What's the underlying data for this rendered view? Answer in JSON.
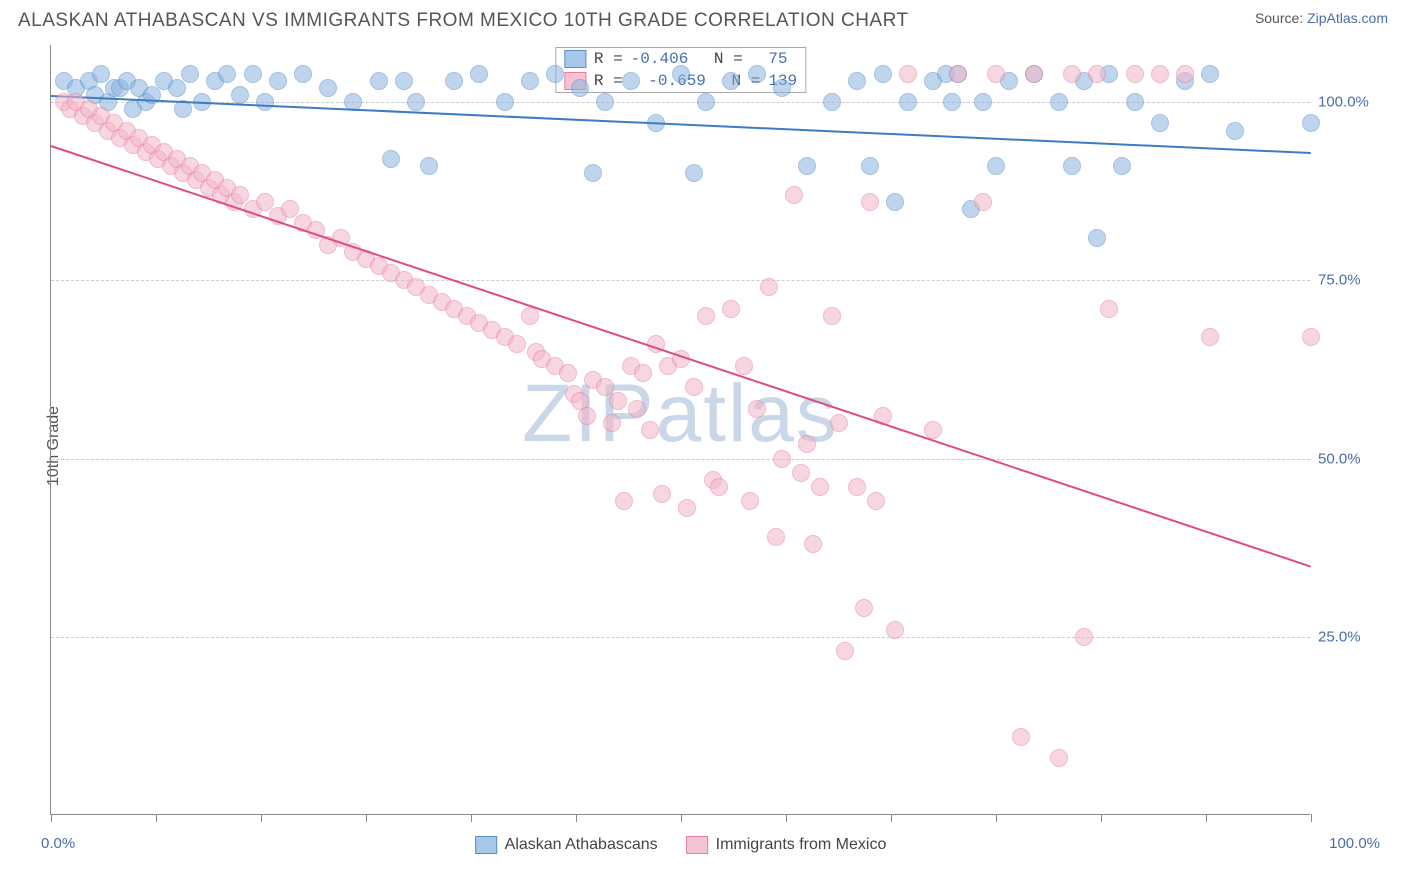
{
  "title": "ALASKAN ATHABASCAN VS IMMIGRANTS FROM MEXICO 10TH GRADE CORRELATION CHART",
  "source_label": "Source: ",
  "source_name": "ZipAtlas.com",
  "ylabel": "10th Grade",
  "watermark_a": "ZIP",
  "watermark_b": "atlas",
  "chart": {
    "type": "scatter",
    "xlim": [
      0,
      100
    ],
    "ylim": [
      0,
      108
    ],
    "y_gridlines": [
      25,
      50,
      75,
      100
    ],
    "y_tick_labels": [
      "25.0%",
      "50.0%",
      "75.0%",
      "100.0%"
    ],
    "x_tick_positions": [
      0,
      8.3,
      16.7,
      25,
      33.3,
      41.7,
      50,
      58.3,
      66.7,
      75,
      83.3,
      91.7,
      100
    ],
    "x_axis_min_label": "0.0%",
    "x_axis_max_label": "100.0%",
    "background_color": "#ffffff",
    "grid_color": "#cccccc",
    "axis_color": "#888888",
    "marker_radius": 9,
    "marker_opacity": 0.55,
    "series": [
      {
        "name": "Alaskan Athabascans",
        "color_fill": "#8bb4e0",
        "color_stroke": "#5a8fc9",
        "line_color": "#3b7cc4",
        "R": "-0.406",
        "N": "75",
        "trend": {
          "x1": 0,
          "y1": 101,
          "x2": 100,
          "y2": 93
        },
        "points": [
          [
            1,
            103
          ],
          [
            2,
            102
          ],
          [
            3,
            103
          ],
          [
            3.5,
            101
          ],
          [
            4,
            104
          ],
          [
            4.5,
            100
          ],
          [
            5,
            102
          ],
          [
            5.5,
            102
          ],
          [
            6,
            103
          ],
          [
            6.5,
            99
          ],
          [
            7,
            102
          ],
          [
            7.5,
            100
          ],
          [
            8,
            101
          ],
          [
            9,
            103
          ],
          [
            10,
            102
          ],
          [
            10.5,
            99
          ],
          [
            11,
            104
          ],
          [
            12,
            100
          ],
          [
            13,
            103
          ],
          [
            14,
            104
          ],
          [
            15,
            101
          ],
          [
            16,
            104
          ],
          [
            17,
            100
          ],
          [
            18,
            103
          ],
          [
            20,
            104
          ],
          [
            22,
            102
          ],
          [
            24,
            100
          ],
          [
            26,
            103
          ],
          [
            27,
            92
          ],
          [
            28,
            103
          ],
          [
            29,
            100
          ],
          [
            30,
            91
          ],
          [
            32,
            103
          ],
          [
            34,
            104
          ],
          [
            36,
            100
          ],
          [
            38,
            103
          ],
          [
            40,
            104
          ],
          [
            42,
            102
          ],
          [
            43,
            90
          ],
          [
            44,
            100
          ],
          [
            46,
            103
          ],
          [
            48,
            97
          ],
          [
            50,
            104
          ],
          [
            51,
            90
          ],
          [
            52,
            100
          ],
          [
            54,
            103
          ],
          [
            56,
            104
          ],
          [
            58,
            102
          ],
          [
            60,
            91
          ],
          [
            62,
            100
          ],
          [
            64,
            103
          ],
          [
            65,
            91
          ],
          [
            66,
            104
          ],
          [
            67,
            86
          ],
          [
            68,
            100
          ],
          [
            70,
            103
          ],
          [
            71,
            104
          ],
          [
            71.5,
            100
          ],
          [
            72,
            104
          ],
          [
            73,
            85
          ],
          [
            74,
            100
          ],
          [
            75,
            91
          ],
          [
            76,
            103
          ],
          [
            78,
            104
          ],
          [
            80,
            100
          ],
          [
            81,
            91
          ],
          [
            82,
            103
          ],
          [
            83,
            81
          ],
          [
            84,
            104
          ],
          [
            85,
            91
          ],
          [
            86,
            100
          ],
          [
            88,
            97
          ],
          [
            90,
            103
          ],
          [
            92,
            104
          ],
          [
            94,
            96
          ],
          [
            100,
            97
          ]
        ]
      },
      {
        "name": "Immigrants from Mexico",
        "color_fill": "#f4b6c8",
        "color_stroke": "#e57fa3",
        "line_color": "#e04c7f",
        "R": "-0.659",
        "N": "139",
        "trend": {
          "x1": 0,
          "y1": 94,
          "x2": 100,
          "y2": 35
        },
        "points": [
          [
            1,
            100
          ],
          [
            1.5,
            99
          ],
          [
            2,
            100
          ],
          [
            2.5,
            98
          ],
          [
            3,
            99
          ],
          [
            3.5,
            97
          ],
          [
            4,
            98
          ],
          [
            4.5,
            96
          ],
          [
            5,
            97
          ],
          [
            5.5,
            95
          ],
          [
            6,
            96
          ],
          [
            6.5,
            94
          ],
          [
            7,
            95
          ],
          [
            7.5,
            93
          ],
          [
            8,
            94
          ],
          [
            8.5,
            92
          ],
          [
            9,
            93
          ],
          [
            9.5,
            91
          ],
          [
            10,
            92
          ],
          [
            10.5,
            90
          ],
          [
            11,
            91
          ],
          [
            11.5,
            89
          ],
          [
            12,
            90
          ],
          [
            12.5,
            88
          ],
          [
            13,
            89
          ],
          [
            13.5,
            87
          ],
          [
            14,
            88
          ],
          [
            14.5,
            86
          ],
          [
            15,
            87
          ],
          [
            16,
            85
          ],
          [
            17,
            86
          ],
          [
            18,
            84
          ],
          [
            19,
            85
          ],
          [
            20,
            83
          ],
          [
            21,
            82
          ],
          [
            22,
            80
          ],
          [
            23,
            81
          ],
          [
            24,
            79
          ],
          [
            25,
            78
          ],
          [
            26,
            77
          ],
          [
            27,
            76
          ],
          [
            28,
            75
          ],
          [
            29,
            74
          ],
          [
            30,
            73
          ],
          [
            31,
            72
          ],
          [
            32,
            71
          ],
          [
            33,
            70
          ],
          [
            34,
            69
          ],
          [
            35,
            68
          ],
          [
            36,
            67
          ],
          [
            37,
            66
          ],
          [
            38,
            70
          ],
          [
            38.5,
            65
          ],
          [
            39,
            64
          ],
          [
            40,
            63
          ],
          [
            41,
            62
          ],
          [
            41.5,
            59
          ],
          [
            42,
            58
          ],
          [
            42.5,
            56
          ],
          [
            43,
            61
          ],
          [
            44,
            60
          ],
          [
            44.5,
            55
          ],
          [
            45,
            58
          ],
          [
            45.5,
            44
          ],
          [
            46,
            63
          ],
          [
            46.5,
            57
          ],
          [
            47,
            62
          ],
          [
            47.5,
            54
          ],
          [
            48,
            66
          ],
          [
            48.5,
            45
          ],
          [
            49,
            63
          ],
          [
            50,
            64
          ],
          [
            50.5,
            43
          ],
          [
            51,
            60
          ],
          [
            52,
            70
          ],
          [
            52.5,
            47
          ],
          [
            53,
            46
          ],
          [
            54,
            71
          ],
          [
            55,
            63
          ],
          [
            55.5,
            44
          ],
          [
            56,
            57
          ],
          [
            57,
            74
          ],
          [
            57.5,
            39
          ],
          [
            58,
            50
          ],
          [
            59,
            87
          ],
          [
            59.5,
            48
          ],
          [
            60,
            52
          ],
          [
            60.5,
            38
          ],
          [
            61,
            46
          ],
          [
            62,
            70
          ],
          [
            62.5,
            55
          ],
          [
            63,
            23
          ],
          [
            64,
            46
          ],
          [
            64.5,
            29
          ],
          [
            65,
            86
          ],
          [
            65.5,
            44
          ],
          [
            66,
            56
          ],
          [
            67,
            26
          ],
          [
            68,
            104
          ],
          [
            70,
            54
          ],
          [
            72,
            104
          ],
          [
            74,
            86
          ],
          [
            75,
            104
          ],
          [
            77,
            11
          ],
          [
            78,
            104
          ],
          [
            80,
            8
          ],
          [
            81,
            104
          ],
          [
            82,
            25
          ],
          [
            83,
            104
          ],
          [
            84,
            71
          ],
          [
            86,
            104
          ],
          [
            88,
            104
          ],
          [
            90,
            104
          ],
          [
            92,
            67
          ],
          [
            100,
            67
          ]
        ]
      }
    ]
  },
  "legend_stats": {
    "r_label": "R =",
    "n_label": "N ="
  },
  "bottom_legend": [
    {
      "label": "Alaskan Athabascans",
      "swatch": "blue"
    },
    {
      "label": "Immigrants from Mexico",
      "swatch": "pink"
    }
  ]
}
